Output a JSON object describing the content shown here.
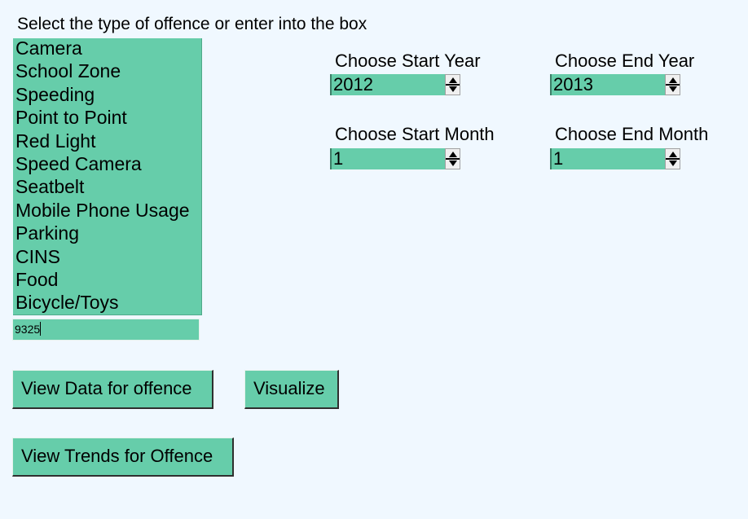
{
  "prompt": "Select the type of offence or enter into the box",
  "offence_list": {
    "items": [
      "Camera",
      "School Zone",
      "Speeding",
      "Point to Point",
      "Red Light",
      "Speed Camera",
      "Seatbelt",
      "Mobile Phone Usage",
      "Parking",
      "CINS",
      "Food",
      "Bicycle/Toys"
    ]
  },
  "offence_entry": {
    "value": "9325"
  },
  "start_year": {
    "label": "Choose Start Year",
    "value": "2012"
  },
  "end_year": {
    "label": "Choose End Year",
    "value": "2013"
  },
  "start_month": {
    "label": "Choose Start Month",
    "value": "1"
  },
  "end_month": {
    "label": "Choose End Month",
    "value": "1"
  },
  "buttons": {
    "view_data": "View Data for offence",
    "visualize": "Visualize",
    "view_trends": "View Trends for Offence"
  },
  "colors": {
    "background": "#f0f8ff",
    "accent": "#66cdaa"
  }
}
